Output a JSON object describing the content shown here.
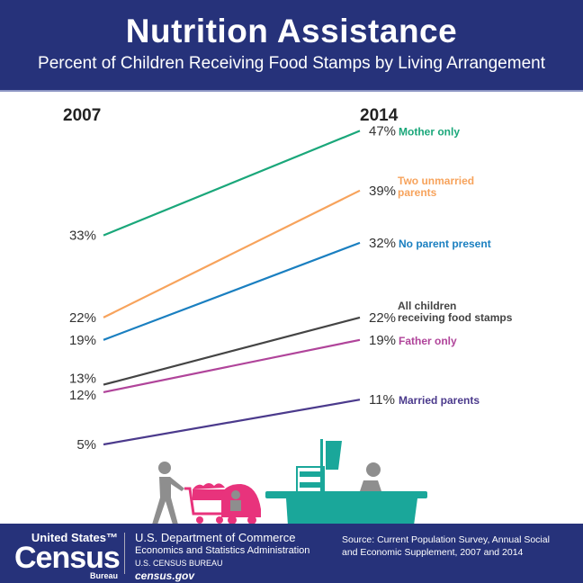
{
  "header": {
    "title": "Nutrition Assistance",
    "subtitle": "Percent of Children Receiving Food Stamps by Living Arrangement"
  },
  "chart_data": {
    "type": "line",
    "title": "Nutrition Assistance",
    "subtitle": "Percent of Children Receiving Food Stamps by Living Arrangement",
    "x": [
      "2007",
      "2014"
    ],
    "unit": "%",
    "series": [
      {
        "name": "Mother only",
        "values": [
          33,
          47
        ],
        "color": "#1aa77a",
        "labels": [
          "33%",
          "47%"
        ]
      },
      {
        "name": "Two unmarried parents",
        "values": [
          22,
          39
        ],
        "color": "#f7a35c",
        "labels": [
          "22%",
          "39%"
        ],
        "name_lines": [
          "Two unmarried",
          "parents"
        ]
      },
      {
        "name": "No parent present",
        "values": [
          19,
          32
        ],
        "color": "#1a7fc0",
        "labels": [
          "19%",
          "32%"
        ]
      },
      {
        "name": "All children receiving food stamps",
        "values": [
          13,
          22
        ],
        "color": "#444444",
        "labels": [
          "13%",
          "22%"
        ],
        "name_lines": [
          "All children",
          "receiving food stamps"
        ]
      },
      {
        "name": "Father only",
        "values": [
          12,
          19
        ],
        "color": "#b0449a",
        "labels": [
          "12%",
          "19%"
        ]
      },
      {
        "name": "Married parents",
        "values": [
          5,
          11
        ],
        "color": "#4b3a8c",
        "labels": [
          "5%",
          "11%"
        ]
      }
    ]
  },
  "footer": {
    "logo": {
      "line1": "United States™",
      "line2": "Census",
      "line3": "Bureau"
    },
    "dept": "U.S. Department of Commerce",
    "admin": "Economics and Statistics Administration",
    "bureau": "U.S. CENSUS BUREAU",
    "website": "census.gov",
    "source": "Source: Current Population Survey, Annual Social and Economic Supplement, 2007 and 2014"
  },
  "colors": {
    "header": "#26327a",
    "pink": "#e8337c",
    "teal": "#1aa79a",
    "gray": "#8e8e8e"
  }
}
